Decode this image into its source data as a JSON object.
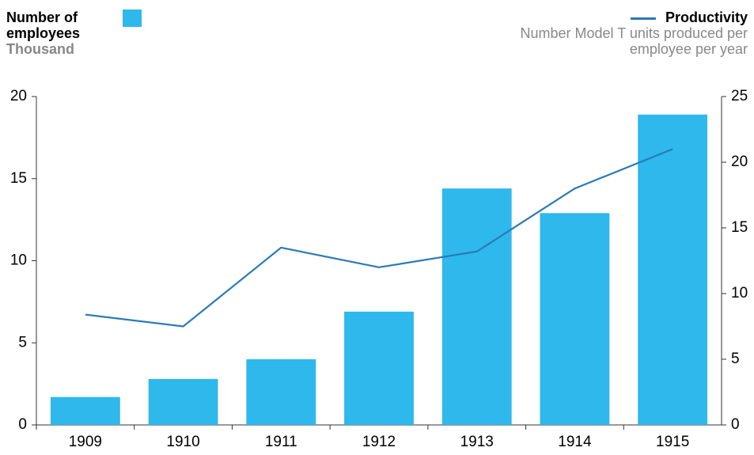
{
  "chart_data": {
    "type": "bar-line",
    "categories": [
      "1909",
      "1910",
      "1911",
      "1912",
      "1913",
      "1914",
      "1915"
    ],
    "series": [
      {
        "name": "Number of employees",
        "unit": "Thousand",
        "type": "bar",
        "color": "#2eb8ec",
        "values": [
          1.7,
          2.8,
          4.0,
          6.9,
          14.4,
          12.9,
          18.9
        ]
      },
      {
        "name": "Productivity",
        "unit": "Number Model T units produced per employee per year",
        "type": "line",
        "axis": "y2",
        "color": "#2a7ab8",
        "values": [
          8.4,
          7.5,
          13.5,
          12.0,
          13.2,
          18.0,
          21.0
        ]
      }
    ],
    "ylim": [
      0,
      20
    ],
    "yticks": [
      0,
      5,
      10,
      15,
      20
    ],
    "y2lim": [
      0,
      25
    ],
    "y2ticks": [
      0,
      5,
      10,
      15,
      20,
      25
    ]
  }
}
